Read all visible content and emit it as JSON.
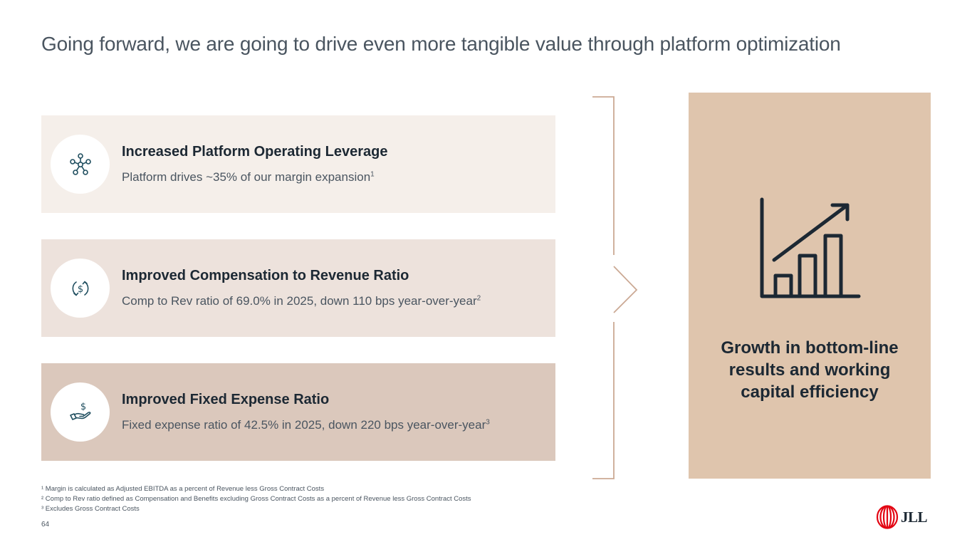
{
  "page": {
    "title": "Going forward, we are going to drive even more tangible value through platform optimization",
    "page_number": "64"
  },
  "cards": [
    {
      "icon": "network-nodes-icon",
      "title": "Increased Platform Operating Leverage",
      "body": "Platform drives ~35% of our margin expansion",
      "footnote_ref": "1"
    },
    {
      "icon": "dollar-cycle-icon",
      "title": "Improved Compensation to Revenue Ratio",
      "body": "Comp to Rev ratio of 69.0% in 2025, down 110 bps year-over-year",
      "footnote_ref": "2"
    },
    {
      "icon": "hand-dollar-icon",
      "title": "Improved Fixed Expense Ratio",
      "body": "Fixed expense ratio of 42.5% in 2025, down 220 bps year-over-year",
      "footnote_ref": "3"
    }
  ],
  "result": {
    "icon": "growth-chart-icon",
    "text": "Growth in bottom-line results and working capital efficiency"
  },
  "footnotes": [
    "¹ Margin is calculated as Adjusted EBITDA as a percent of Revenue less Gross Contract Costs",
    "² Comp to Rev ratio defined as Compensation and Benefits excluding Gross Contract Costs as a percent of Revenue less Gross Contract Costs",
    "³ Excludes Gross Contract Costs"
  ],
  "logo": {
    "text": "JLL",
    "color": "#e30613"
  },
  "colors": {
    "card1_bg": "#f5efea",
    "card2_bg": "#ede2dc",
    "card3_bg": "#dbc8bc",
    "result_bg": "#dfc5ad",
    "icon_teal": "#1f4e5f",
    "bracket": "#cba994"
  }
}
